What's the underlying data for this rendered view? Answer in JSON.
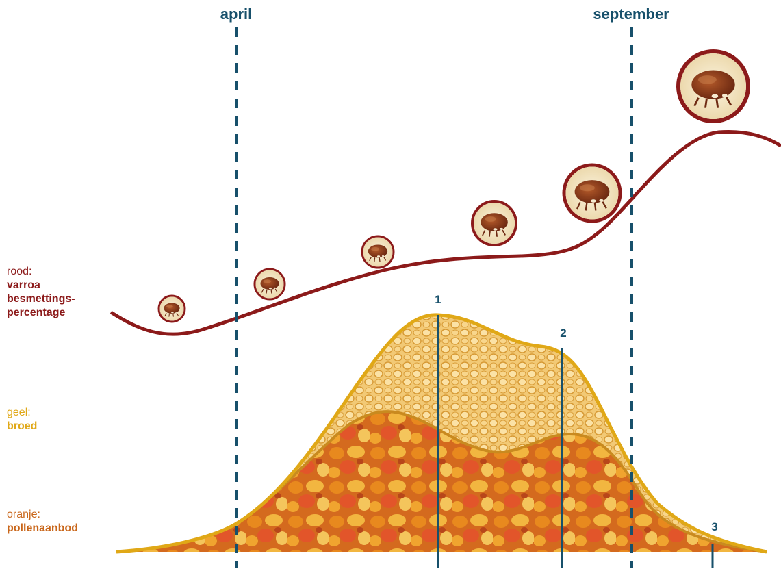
{
  "months": {
    "april": "april",
    "september": "september"
  },
  "legend": {
    "red": {
      "key": "rood:",
      "value": "varroa besmettings-percentage",
      "line1": "varroa",
      "line2": "besmettings-",
      "line3": "percentage",
      "color": "#8c1a1a"
    },
    "yellow": {
      "key": "geel:",
      "value": "broed",
      "color": "#e0a817"
    },
    "orange": {
      "key": "oranje:",
      "value": "pollenaanbod",
      "color": "#c9661a"
    }
  },
  "markers": [
    "1",
    "2",
    "3"
  ],
  "colors": {
    "accent_blue": "#17506b",
    "varroa_red": "#8c1a1a",
    "brood_yellow": "#e0a817",
    "pollen_orange": "#c9661a"
  },
  "icons": [
    "varroa-mite-icon"
  ]
}
